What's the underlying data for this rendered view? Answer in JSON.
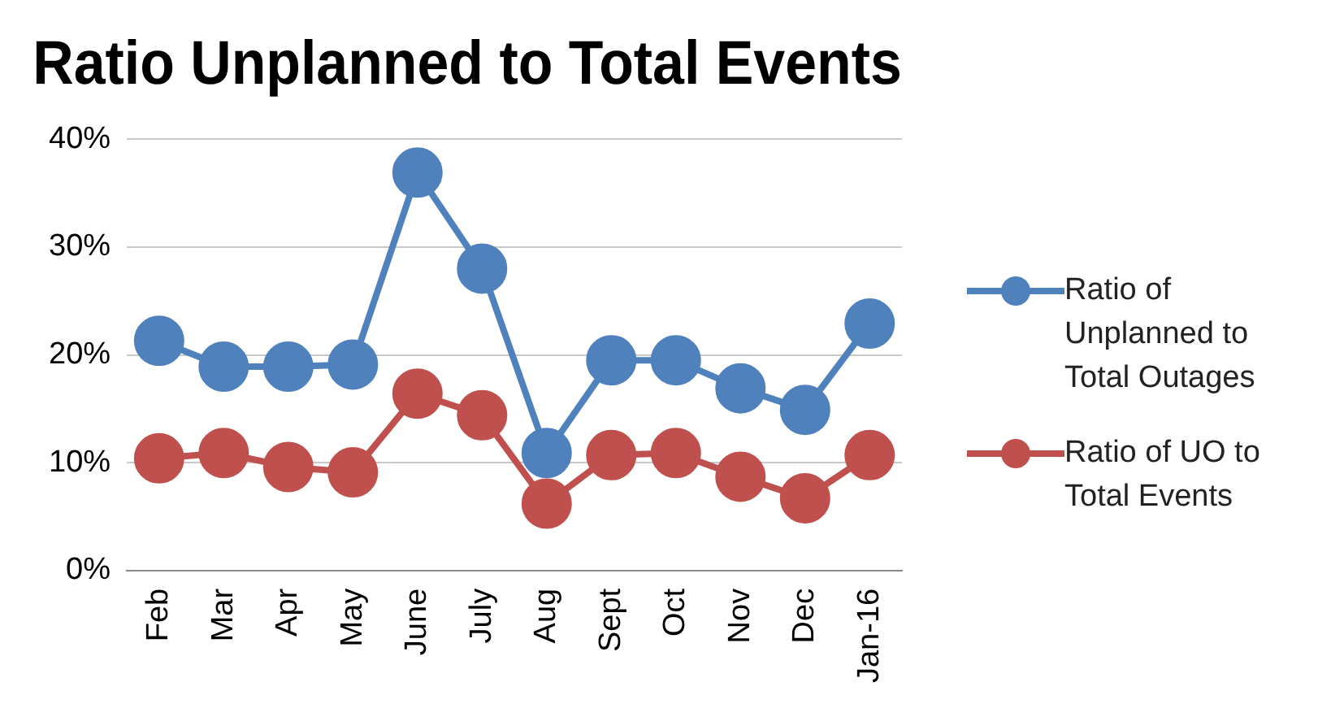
{
  "chart_data": {
    "type": "line",
    "title": "Ratio Unplanned to Total Events",
    "categories": [
      "Feb",
      "Mar",
      "Apr",
      "May",
      "June",
      "July",
      "Aug",
      "Sept",
      "Oct",
      "Nov",
      "Dec",
      "Jan-16"
    ],
    "series": [
      {
        "name": "Ratio of Unplanned to Total Outages",
        "color": "#4f81bd",
        "values": [
          21.3,
          18.9,
          18.9,
          19.1,
          36.9,
          28,
          10.9,
          19.5,
          19.5,
          16.9,
          14.9,
          22.9
        ]
      },
      {
        "name": "Ratio of UO to Total Events",
        "color": "#c0504d",
        "values": [
          10.4,
          10.9,
          9.6,
          9.1,
          16.4,
          14.4,
          6.2,
          10.7,
          10.9,
          8.7,
          6.7,
          10.7
        ]
      }
    ],
    "ylim": [
      0,
      40
    ],
    "yticks": [
      {
        "value": 0,
        "label": "0%"
      },
      {
        "value": 10,
        "label": "10%"
      },
      {
        "value": 20,
        "label": "20%"
      },
      {
        "value": 30,
        "label": "30%"
      },
      {
        "value": 40,
        "label": "40%"
      }
    ],
    "grid": "y",
    "legend": "right",
    "marker": "circle",
    "line_style": "solid"
  }
}
